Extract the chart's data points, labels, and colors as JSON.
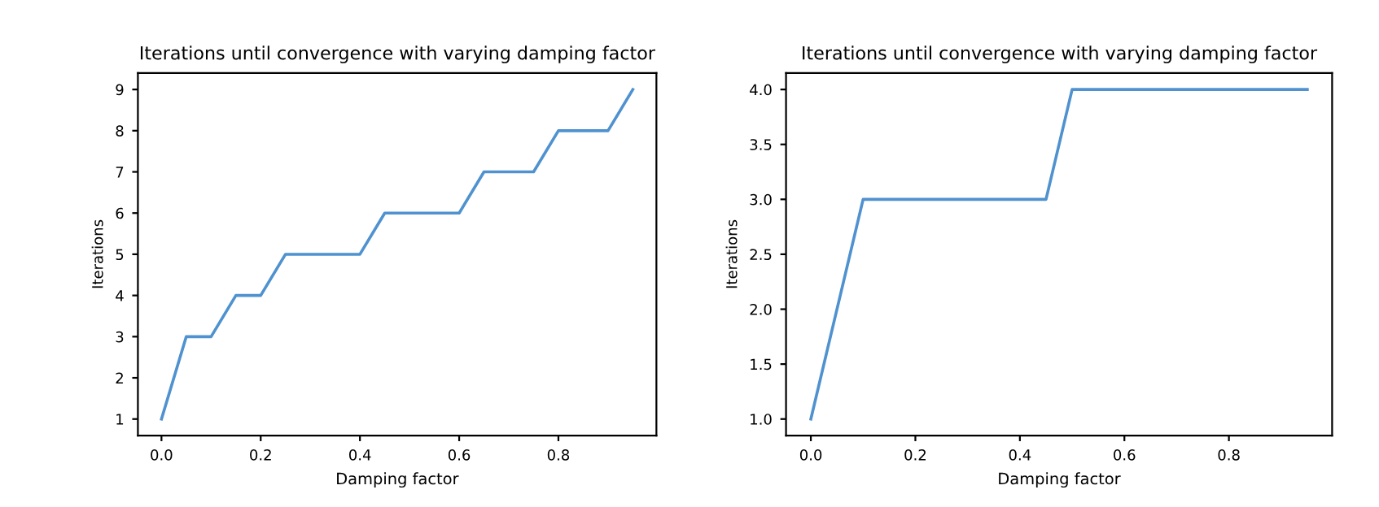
{
  "chart_data": [
    {
      "type": "line",
      "title": "Iterations until convergence with varying damping factor",
      "xlabel": "Damping factor",
      "ylabel": "Iterations",
      "x": [
        0,
        0.05,
        0.1,
        0.15,
        0.2,
        0.25,
        0.3,
        0.35,
        0.4,
        0.45,
        0.5,
        0.55,
        0.6,
        0.65,
        0.7,
        0.75,
        0.8,
        0.85,
        0.9,
        0.95
      ],
      "series": [
        {
          "color": "#4f92cf",
          "values": [
            1,
            3,
            3,
            4,
            4,
            5,
            5,
            5,
            5,
            6,
            6,
            6,
            6,
            7,
            7,
            7,
            8,
            8,
            8,
            9
          ]
        }
      ],
      "xlim": [
        -0.0475,
        0.9975
      ],
      "xticks": [
        {
          "value": 0,
          "label": "0.0"
        },
        {
          "value": 0.2,
          "label": "0.2"
        },
        {
          "value": 0.4,
          "label": "0.4"
        },
        {
          "value": 0.6,
          "label": "0.6"
        },
        {
          "value": 0.8,
          "label": "0.8"
        }
      ],
      "ylim": [
        0.6,
        9.4
      ],
      "yticks": [
        1,
        2,
        3,
        4,
        5,
        6,
        7,
        8,
        9
      ],
      "grid": false,
      "marker": "none",
      "line_style": "solid"
    },
    {
      "type": "line",
      "title": "Iterations until convergence with varying damping factor",
      "xlabel": "Damping factor",
      "ylabel": "Iterations",
      "x": [
        0,
        0.1,
        0.45,
        0.5,
        0.95
      ],
      "series": [
        {
          "color": "#4f92cf",
          "values": [
            1,
            3,
            3,
            4,
            4
          ]
        }
      ],
      "xlim": [
        -0.0475,
        0.9975
      ],
      "xticks": [
        {
          "value": 0,
          "label": "0.0"
        },
        {
          "value": 0.2,
          "label": "0.2"
        },
        {
          "value": 0.4,
          "label": "0.4"
        },
        {
          "value": 0.6,
          "label": "0.6"
        },
        {
          "value": 0.8,
          "label": "0.8"
        }
      ],
      "ylim": [
        0.85,
        4.15
      ],
      "yticks": [
        {
          "value": 1,
          "label": "1.0"
        },
        {
          "value": 1.5,
          "label": "1.5"
        },
        {
          "value": 2,
          "label": "2.0"
        },
        {
          "value": 2.5,
          "label": "2.5"
        },
        {
          "value": 3,
          "label": "3.0"
        },
        {
          "value": 3.5,
          "label": "3.5"
        },
        {
          "value": 4,
          "label": "4.0"
        }
      ],
      "grid": false,
      "marker": "none",
      "line_style": "solid"
    }
  ]
}
